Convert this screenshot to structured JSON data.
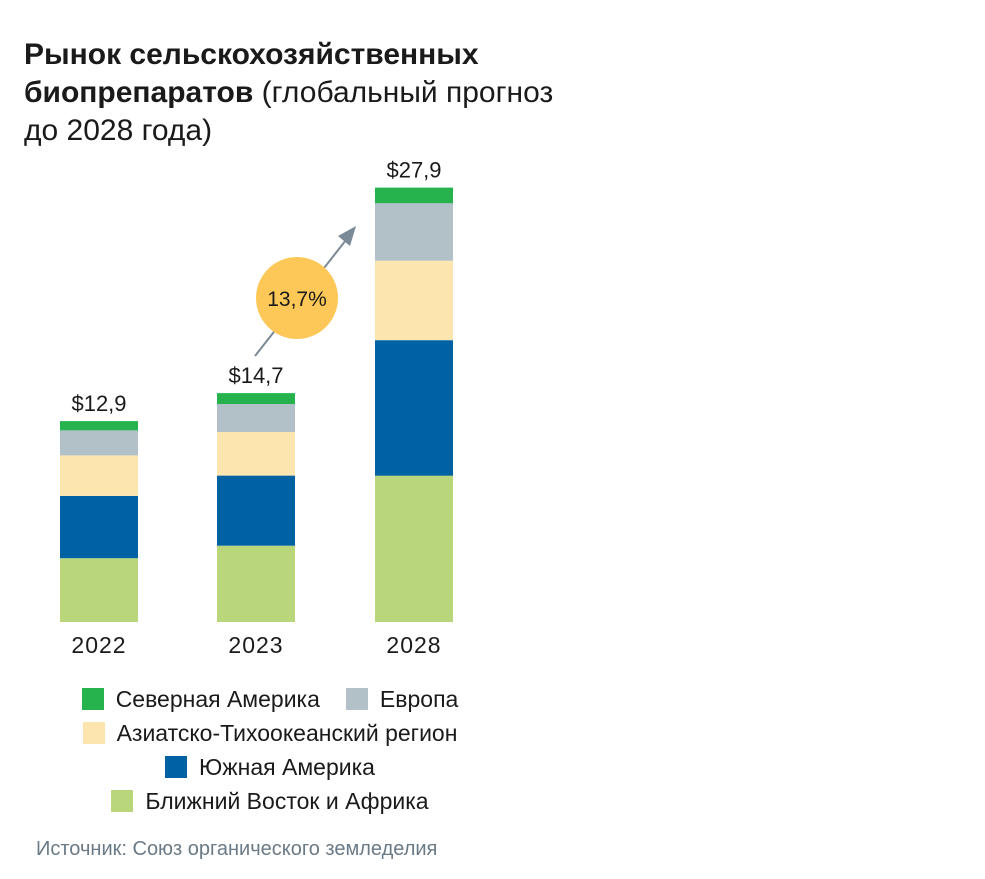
{
  "title": {
    "bold": "Рынок сельскохозяйственных биопрепаратов",
    "normal": "(глобальный прогноз до 2028 года)"
  },
  "chart_data": {
    "type": "bar",
    "stacked": true,
    "categories": [
      "2022",
      "2023",
      "2028"
    ],
    "totals": [
      12.9,
      14.7,
      27.9
    ],
    "total_labels": [
      "$12,9",
      "$14,7",
      "$27,9"
    ],
    "series": [
      {
        "name": "Ближний Восток и Африка",
        "color": "#b9d77a",
        "values": [
          4.1,
          4.9,
          9.4
        ]
      },
      {
        "name": "Южная Америка",
        "color": "#0062a3",
        "values": [
          4.0,
          4.5,
          8.7
        ]
      },
      {
        "name": "Азиатско-Тихоокеанский регион",
        "color": "#fce5ae",
        "values": [
          2.6,
          2.8,
          5.1
        ]
      },
      {
        "name": "Европа",
        "color": "#b2c1c8",
        "values": [
          1.6,
          1.8,
          3.7
        ]
      },
      {
        "name": "Северная Америка",
        "color": "#26b24c",
        "values": [
          0.6,
          0.7,
          1.0
        ]
      }
    ],
    "ylim": [
      0,
      28
    ],
    "growth_label": "13,7%",
    "growth_color": "#fdc857",
    "arrow_color": "#7a8a96"
  },
  "legend": {
    "rows": [
      [
        {
          "label": "Северная Америка",
          "color": "#26b24c"
        },
        {
          "label": "Европа",
          "color": "#b2c1c8"
        }
      ],
      [
        {
          "label": "Азиатско-Тихоокеанский регион",
          "color": "#fce5ae"
        }
      ],
      [
        {
          "label": "Южная Америка",
          "color": "#0062a3"
        }
      ],
      [
        {
          "label": "Ближний Восток и Африка",
          "color": "#b9d77a"
        }
      ]
    ]
  },
  "source": "Источник: Союз органического земледелия"
}
